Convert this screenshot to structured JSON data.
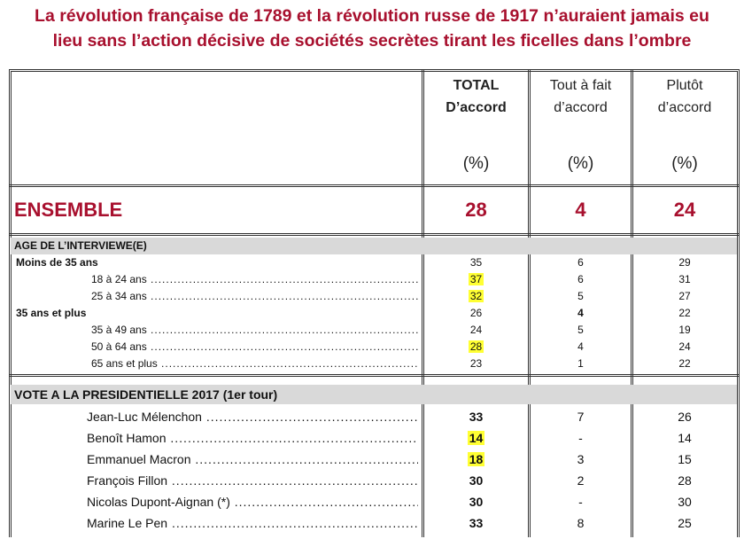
{
  "title": {
    "line1": "La révolution française de 1789 et la révolution russe de 1917 n’auraient jamais eu",
    "line2": "lieu sans l’action décisive de sociétés secrètes tirant les ficelles dans l’ombre"
  },
  "columns": [
    {
      "line1": "TOTAL",
      "line2": "D’accord",
      "unit": "(%)"
    },
    {
      "line1": "Tout à fait",
      "line2": "d’accord",
      "unit": "(%)"
    },
    {
      "line1": "Plutôt",
      "line2": "d’accord",
      "unit": "(%)"
    }
  ],
  "ensemble": {
    "label": "ENSEMBLE",
    "values": [
      "28",
      "4",
      "24"
    ]
  },
  "age_section": {
    "title": "AGE DE L’INTERVIEWE(E)",
    "rows": [
      {
        "label": "Moins de 35 ans",
        "values": [
          "35",
          "6",
          "29"
        ]
      },
      {
        "label": "18 à 24 ans",
        "values": [
          "37",
          "6",
          "31"
        ]
      },
      {
        "label": "25 à 34 ans",
        "values": [
          "32",
          "5",
          "27"
        ]
      },
      {
        "label": "35 ans et plus",
        "values": [
          "26",
          "4",
          "22"
        ]
      },
      {
        "label": "35 à 49 ans",
        "values": [
          "24",
          "5",
          "19"
        ]
      },
      {
        "label": "50 à 64 ans",
        "values": [
          "28",
          "4",
          "24"
        ]
      },
      {
        "label": "65 ans et plus",
        "values": [
          "23",
          "1",
          "22"
        ]
      }
    ]
  },
  "vote_section": {
    "title": "VOTE A LA PRESIDENTIELLE 2017 (1er tour)",
    "rows": [
      {
        "label": "Jean-Luc Mélenchon",
        "values": [
          "33",
          "7",
          "26"
        ]
      },
      {
        "label": "Benoît Hamon",
        "values": [
          "14",
          "-",
          "14"
        ]
      },
      {
        "label": "Emmanuel Macron",
        "values": [
          "18",
          "3",
          "15"
        ]
      },
      {
        "label": "François Fillon",
        "values": [
          "30",
          "2",
          "28"
        ]
      },
      {
        "label": "Nicolas Dupont-Aignan (*)",
        "values": [
          "30",
          "-",
          "30"
        ]
      },
      {
        "label": "Marine Le Pen",
        "values": [
          "33",
          "8",
          "25"
        ]
      }
    ]
  },
  "colors": {
    "title": "#a8102e",
    "highlight": "#ffff33",
    "band": "#d9d9d9"
  }
}
